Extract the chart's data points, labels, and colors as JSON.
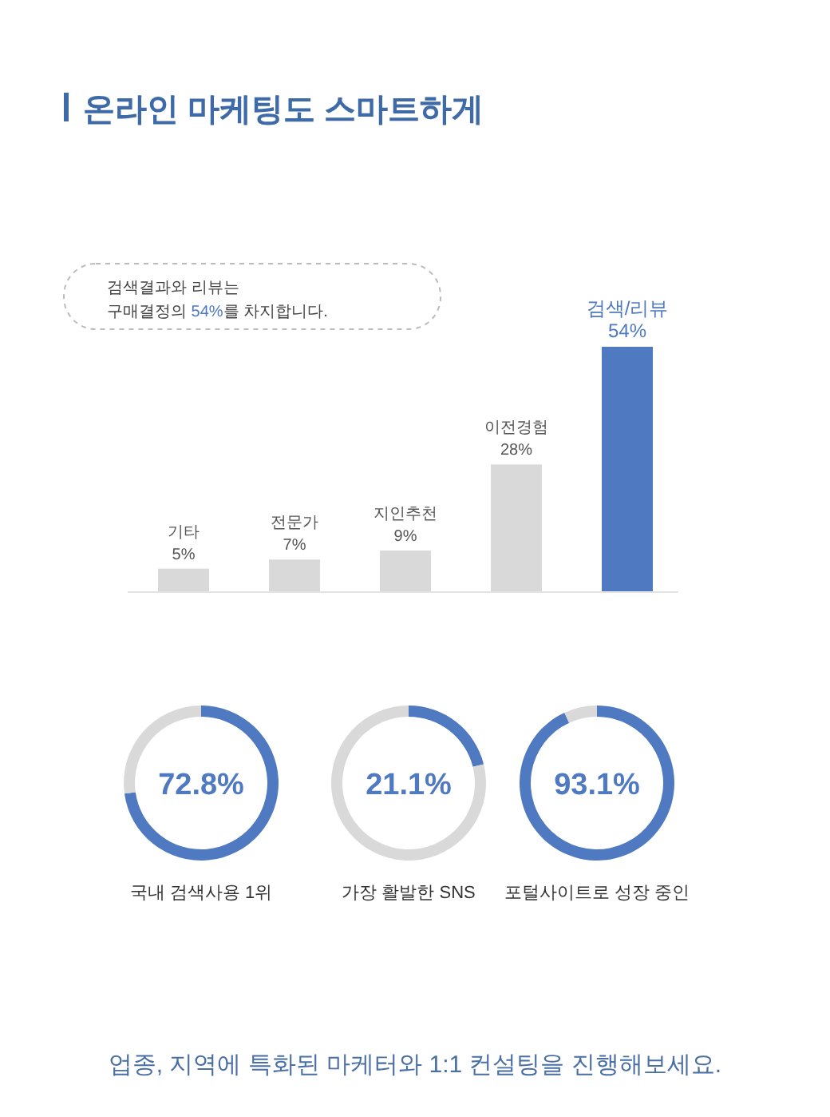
{
  "chart_data": [
    {
      "type": "bar",
      "title": "온라인 마케팅도 스마트하게",
      "annotations": [
        "검색결과와 리뷰는\n구매결정의 54%를 차지합니다."
      ],
      "categories": [
        "기타",
        "전문가",
        "지인추천",
        "이전경험",
        "검색/리뷰"
      ],
      "values": [
        5,
        7,
        9,
        28,
        54
      ],
      "colors": [
        "#d9d9d9",
        "#d9d9d9",
        "#d9d9d9",
        "#d9d9d9",
        "#4f79c0"
      ],
      "value_labels": [
        "5%",
        "7%",
        "9%",
        "28%",
        "54%"
      ]
    },
    {
      "type": "donut",
      "title": "국내 검색사용 1위",
      "categories": [
        null,
        null
      ],
      "values": [
        72.8,
        27.2
      ],
      "colors": [
        "#4f79c0",
        "#d9d9d9"
      ],
      "annotations": [
        "72.8%"
      ]
    },
    {
      "type": "donut",
      "title": "가장 활발한 SNS",
      "categories": [
        null,
        null
      ],
      "values": [
        21.1,
        78.9
      ],
      "colors": [
        "#4f79c0",
        "#d9d9d9"
      ],
      "annotations": [
        "21.1%"
      ]
    },
    {
      "type": "donut",
      "title": "포털사이트로 성장 중인",
      "categories": [
        null,
        null
      ],
      "values": [
        93.1,
        6.9
      ],
      "colors": [
        "#4f79c0",
        "#d9d9d9"
      ],
      "annotations": [
        "93.1%",
        "업종, 지역에 특화된 마케터와 1:1 컨설팅을 진행해보세요."
      ]
    }
  ]
}
